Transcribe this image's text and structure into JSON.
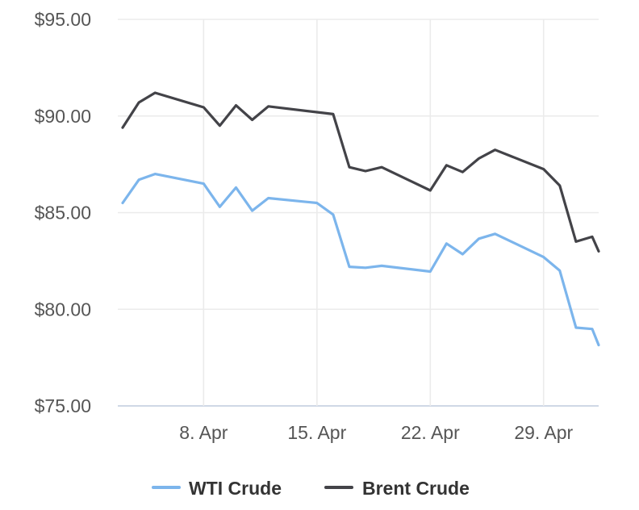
{
  "chart_data": {
    "type": "line",
    "title": "",
    "xlabel": "",
    "ylabel": "",
    "y_ticks": [
      "$75.00",
      "$80.00",
      "$85.00",
      "$90.00",
      "$95.00"
    ],
    "y_tick_values": [
      75,
      80,
      85,
      90,
      95
    ],
    "ylim": [
      75,
      95
    ],
    "x_ticks": [
      "8. Apr",
      "15. Apr",
      "22. Apr",
      "29. Apr"
    ],
    "x_tick_values": [
      8,
      15,
      22,
      29
    ],
    "xlim": [
      2.7,
      32.4
    ],
    "grid": true,
    "legend_position": "bottom",
    "x": [
      3,
      4,
      5,
      8,
      9,
      10,
      11,
      12,
      15,
      16,
      17,
      18,
      19,
      22,
      23,
      24,
      25,
      26,
      29,
      30,
      31,
      32,
      33
    ],
    "series": [
      {
        "name": "WTI Crude",
        "color": "#7cb5ec",
        "x": [
          3,
          4,
          5,
          8,
          9,
          10,
          11,
          12,
          15,
          16,
          17,
          18,
          19,
          22,
          23,
          24,
          25,
          26,
          29,
          30,
          31,
          32,
          32.4
        ],
        "values": [
          85.5,
          86.7,
          87.0,
          86.5,
          85.3,
          86.3,
          85.1,
          85.75,
          85.5,
          84.9,
          82.2,
          82.15,
          82.25,
          81.95,
          83.4,
          82.85,
          83.65,
          83.9,
          82.7,
          82.0,
          79.05,
          78.98,
          78.15
        ]
      },
      {
        "name": "Brent Crude",
        "color": "#434348",
        "x": [
          3,
          4,
          5,
          8,
          9,
          10,
          11,
          12,
          15,
          16,
          17,
          18,
          19,
          22,
          23,
          24,
          25,
          26,
          29,
          30,
          31,
          32,
          32.4
        ],
        "values": [
          89.4,
          90.7,
          91.2,
          90.45,
          89.5,
          90.55,
          89.8,
          90.5,
          90.2,
          90.1,
          87.35,
          87.15,
          87.35,
          86.15,
          87.45,
          87.1,
          87.8,
          88.25,
          87.25,
          86.4,
          83.5,
          83.75,
          83.0
        ]
      }
    ]
  }
}
